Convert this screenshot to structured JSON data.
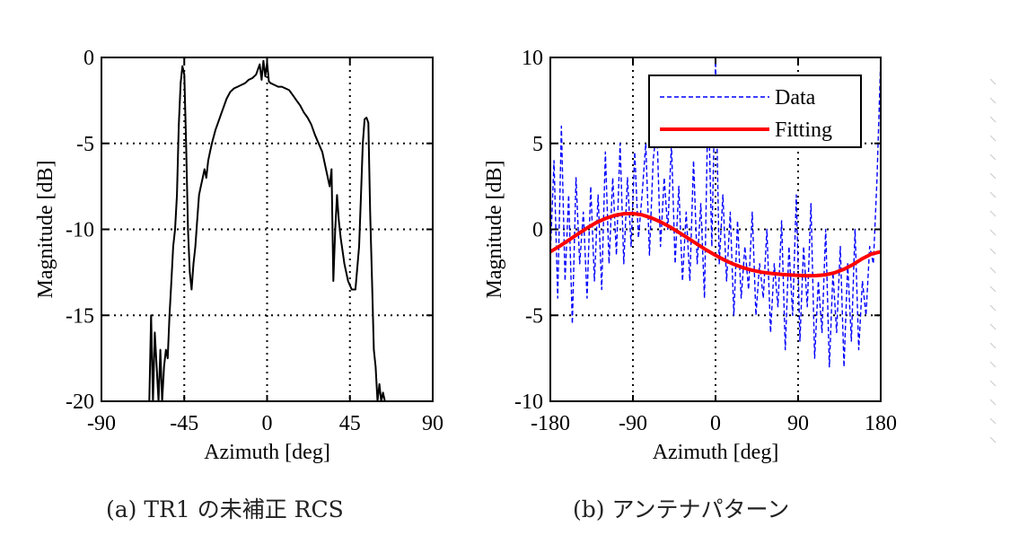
{
  "captions": {
    "a": "(a) TR1 の未補正 RCS",
    "b": "(b) アンテナパターン"
  },
  "chart_data": [
    {
      "type": "line",
      "xlabel": "Azimuth [deg]",
      "ylabel": "Magnitude [dB]",
      "xlim": [
        -90,
        90
      ],
      "ylim": [
        -20,
        0
      ],
      "xticks": [
        -90,
        -45,
        0,
        45,
        90
      ],
      "xtick_labels": [
        "-90",
        "-45",
        "0",
        "45",
        "90"
      ],
      "yticks": [
        0,
        -5,
        -10,
        -15,
        -20
      ],
      "ytick_labels": [
        "0",
        "-5",
        "-10",
        "-15",
        "-20"
      ],
      "grid": true,
      "series": [
        {
          "color": "#000000",
          "style": "solid",
          "x": [
            -64,
            -63,
            -62,
            -61,
            -60,
            -59,
            -58,
            -57,
            -56,
            -55,
            -54,
            -53,
            -52,
            -51,
            -50,
            -49,
            -48,
            -47,
            -46,
            -45,
            -44,
            -43,
            -42,
            -41,
            -40,
            -39,
            -38,
            -37,
            -36,
            -35,
            -34,
            -33,
            -32,
            -31,
            -30,
            -28,
            -26,
            -24,
            -22,
            -20,
            -18,
            -16,
            -14,
            -12,
            -10,
            -8,
            -6,
            -4,
            -3,
            -2,
            -1,
            0,
            1,
            2,
            4,
            6,
            8,
            10,
            12,
            14,
            16,
            18,
            20,
            22,
            24,
            26,
            28,
            30,
            32,
            34,
            35,
            36,
            37,
            38,
            39,
            40,
            42,
            44,
            46,
            48,
            50,
            51,
            52,
            53,
            54,
            55,
            56,
            57,
            58,
            59,
            60,
            61,
            62,
            63,
            64
          ],
          "y": [
            -20,
            -15,
            -20,
            -16,
            -18,
            -20,
            -17,
            -20,
            -18,
            -17,
            -17.5,
            -15,
            -13,
            -11,
            -10,
            -8,
            -4,
            -1.5,
            -0.5,
            -1,
            -5,
            -10,
            -12.5,
            -13.5,
            -12,
            -11,
            -9.5,
            -8,
            -7.5,
            -7,
            -6.5,
            -7,
            -6,
            -5.5,
            -5,
            -4.2,
            -3.6,
            -3,
            -2.4,
            -2,
            -1.8,
            -1.7,
            -1.6,
            -1.5,
            -1.3,
            -1.2,
            -1.0,
            -0.4,
            -1.3,
            -0.2,
            -1.1,
            -0.3,
            -1.4,
            -1.5,
            -1.6,
            -1.7,
            -1.7,
            -1.8,
            -1.9,
            -2.2,
            -2.5,
            -2.8,
            -3.2,
            -3.5,
            -3.9,
            -4.5,
            -5,
            -5.5,
            -6.5,
            -7.5,
            -6.5,
            -13,
            -10,
            -8,
            -9.5,
            -10.5,
            -12,
            -13,
            -13.5,
            -13.5,
            -11,
            -8,
            -5,
            -3.6,
            -3.5,
            -3.8,
            -9,
            -13,
            -17,
            -18,
            -20,
            -19,
            -20,
            -19.5,
            -20
          ]
        }
      ]
    },
    {
      "type": "line",
      "xlabel": "Azimuth [deg]",
      "ylabel": "Magnitude [dB]",
      "xlim": [
        -180,
        180
      ],
      "ylim": [
        -10,
        10
      ],
      "xticks": [
        -180,
        -90,
        0,
        90,
        180
      ],
      "xtick_labels": [
        "-180",
        "-90",
        "0",
        "90",
        "180"
      ],
      "yticks": [
        10,
        5,
        0,
        -5,
        -10
      ],
      "ytick_labels": [
        "10",
        "5",
        "0",
        "-5",
        "-10"
      ],
      "grid": true,
      "legend": "top-right",
      "series": [
        {
          "name": "Data",
          "color": "#0000ff",
          "style": "dashed",
          "x": [
            -180,
            -176,
            -172,
            -168,
            -164,
            -160,
            -156,
            -152,
            -148,
            -144,
            -140,
            -136,
            -132,
            -128,
            -124,
            -120,
            -116,
            -112,
            -108,
            -104,
            -100,
            -96,
            -92,
            -88,
            -84,
            -80,
            -76,
            -72,
            -68,
            -64,
            -60,
            -56,
            -52,
            -48,
            -44,
            -40,
            -36,
            -32,
            -28,
            -24,
            -20,
            -16,
            -12,
            -8,
            -4,
            0,
            4,
            8,
            12,
            16,
            20,
            24,
            28,
            32,
            36,
            40,
            44,
            48,
            52,
            56,
            60,
            64,
            68,
            72,
            76,
            80,
            84,
            88,
            92,
            96,
            100,
            104,
            108,
            112,
            116,
            120,
            124,
            128,
            132,
            136,
            140,
            144,
            148,
            152,
            156,
            160,
            164,
            168,
            172,
            176,
            180
          ],
          "y": [
            -1.5,
            4,
            -4,
            6,
            -3,
            2,
            -5.5,
            3,
            -2,
            1,
            -4,
            2.5,
            -3,
            2,
            -3.5,
            4.5,
            -2,
            3,
            -1.5,
            5,
            -2,
            3,
            -1,
            4.5,
            -0.5,
            2,
            5,
            -1.5,
            4,
            6,
            -1,
            3,
            0,
            5,
            -2,
            2.5,
            -3,
            1,
            -3,
            4,
            -2,
            1.5,
            -4,
            8,
            -1,
            10,
            -2,
            2,
            -3,
            1,
            -5,
            0.5,
            -4,
            -1,
            -3.5,
            1,
            -5,
            -2,
            -4,
            0,
            -6,
            -2,
            -4.5,
            0.5,
            -7,
            -1,
            -5,
            2,
            -6.5,
            -1,
            -4.5,
            1.5,
            -7.5,
            -3,
            -6,
            0,
            -8,
            -2.5,
            -6,
            -1,
            -8,
            -2,
            -6.5,
            0,
            -7,
            -3,
            -5,
            -1,
            -2,
            3,
            10
          ]
        },
        {
          "name": "Fitting",
          "color": "#ff0000",
          "style": "solid",
          "x": [
            -180,
            -170,
            -160,
            -150,
            -140,
            -130,
            -120,
            -110,
            -100,
            -90,
            -80,
            -70,
            -60,
            -50,
            -40,
            -30,
            -20,
            -10,
            0,
            10,
            20,
            30,
            40,
            50,
            60,
            70,
            80,
            90,
            100,
            110,
            120,
            130,
            140,
            150,
            160,
            170,
            180
          ],
          "y": [
            -1.3,
            -0.98,
            -0.63,
            -0.27,
            0.08,
            0.39,
            0.63,
            0.81,
            0.91,
            0.92,
            0.84,
            0.67,
            0.44,
            0.15,
            -0.17,
            -0.51,
            -0.86,
            -1.2,
            -1.51,
            -1.79,
            -2.03,
            -2.23,
            -2.38,
            -2.49,
            -2.56,
            -2.61,
            -2.65,
            -2.68,
            -2.7,
            -2.69,
            -2.64,
            -2.52,
            -2.32,
            -2.04,
            -1.7,
            -1.43,
            -1.3
          ]
        }
      ]
    }
  ]
}
